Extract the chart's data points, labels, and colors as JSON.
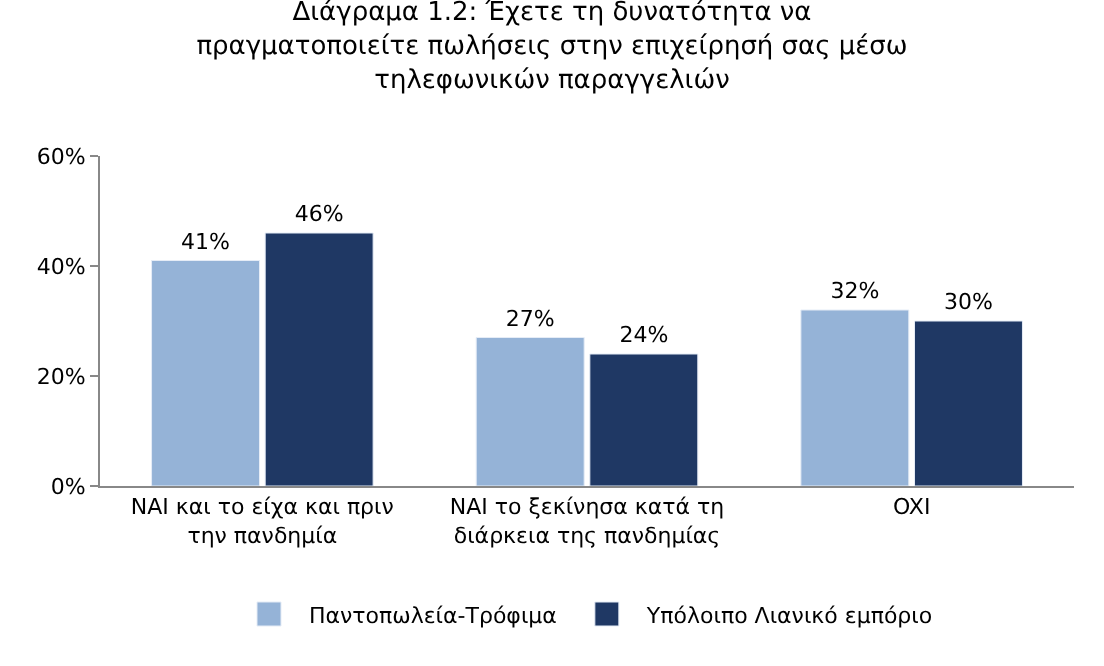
{
  "chart_data": {
    "type": "bar",
    "title": "Διάγραμα 1.2: Έχετε τη δυνατότητα να πραγματοποιείτε πωλήσεις στην επιχείρησή σας μέσω τηλεφωνικών παραγγελιών",
    "categories": [
      "NAI και το είχα και πριν την πανδημία",
      "NAI το ξεκίνησα κατά τη διάρκεια της πανδημίας",
      "OXI"
    ],
    "series": [
      {
        "name": "Παντοπωλεία-Τρόφιμα",
        "color": "#95b3d7",
        "values": [
          41,
          27,
          32
        ],
        "value_labels": [
          "41%",
          "27%",
          "32%"
        ]
      },
      {
        "name": "Υπόλοιπο Λιανικό εμπόριο",
        "color": "#1f3864",
        "values": [
          46,
          24,
          30
        ],
        "value_labels": [
          "46%",
          "24%",
          "30%"
        ]
      }
    ],
    "ylim": [
      0,
      60
    ],
    "yticks": [
      {
        "value": 0,
        "label": "0%"
      },
      {
        "value": 20,
        "label": "20%"
      },
      {
        "value": 40,
        "label": "40%"
      },
      {
        "value": 60,
        "label": "60%"
      }
    ],
    "grid": false,
    "legend": "bottom"
  }
}
